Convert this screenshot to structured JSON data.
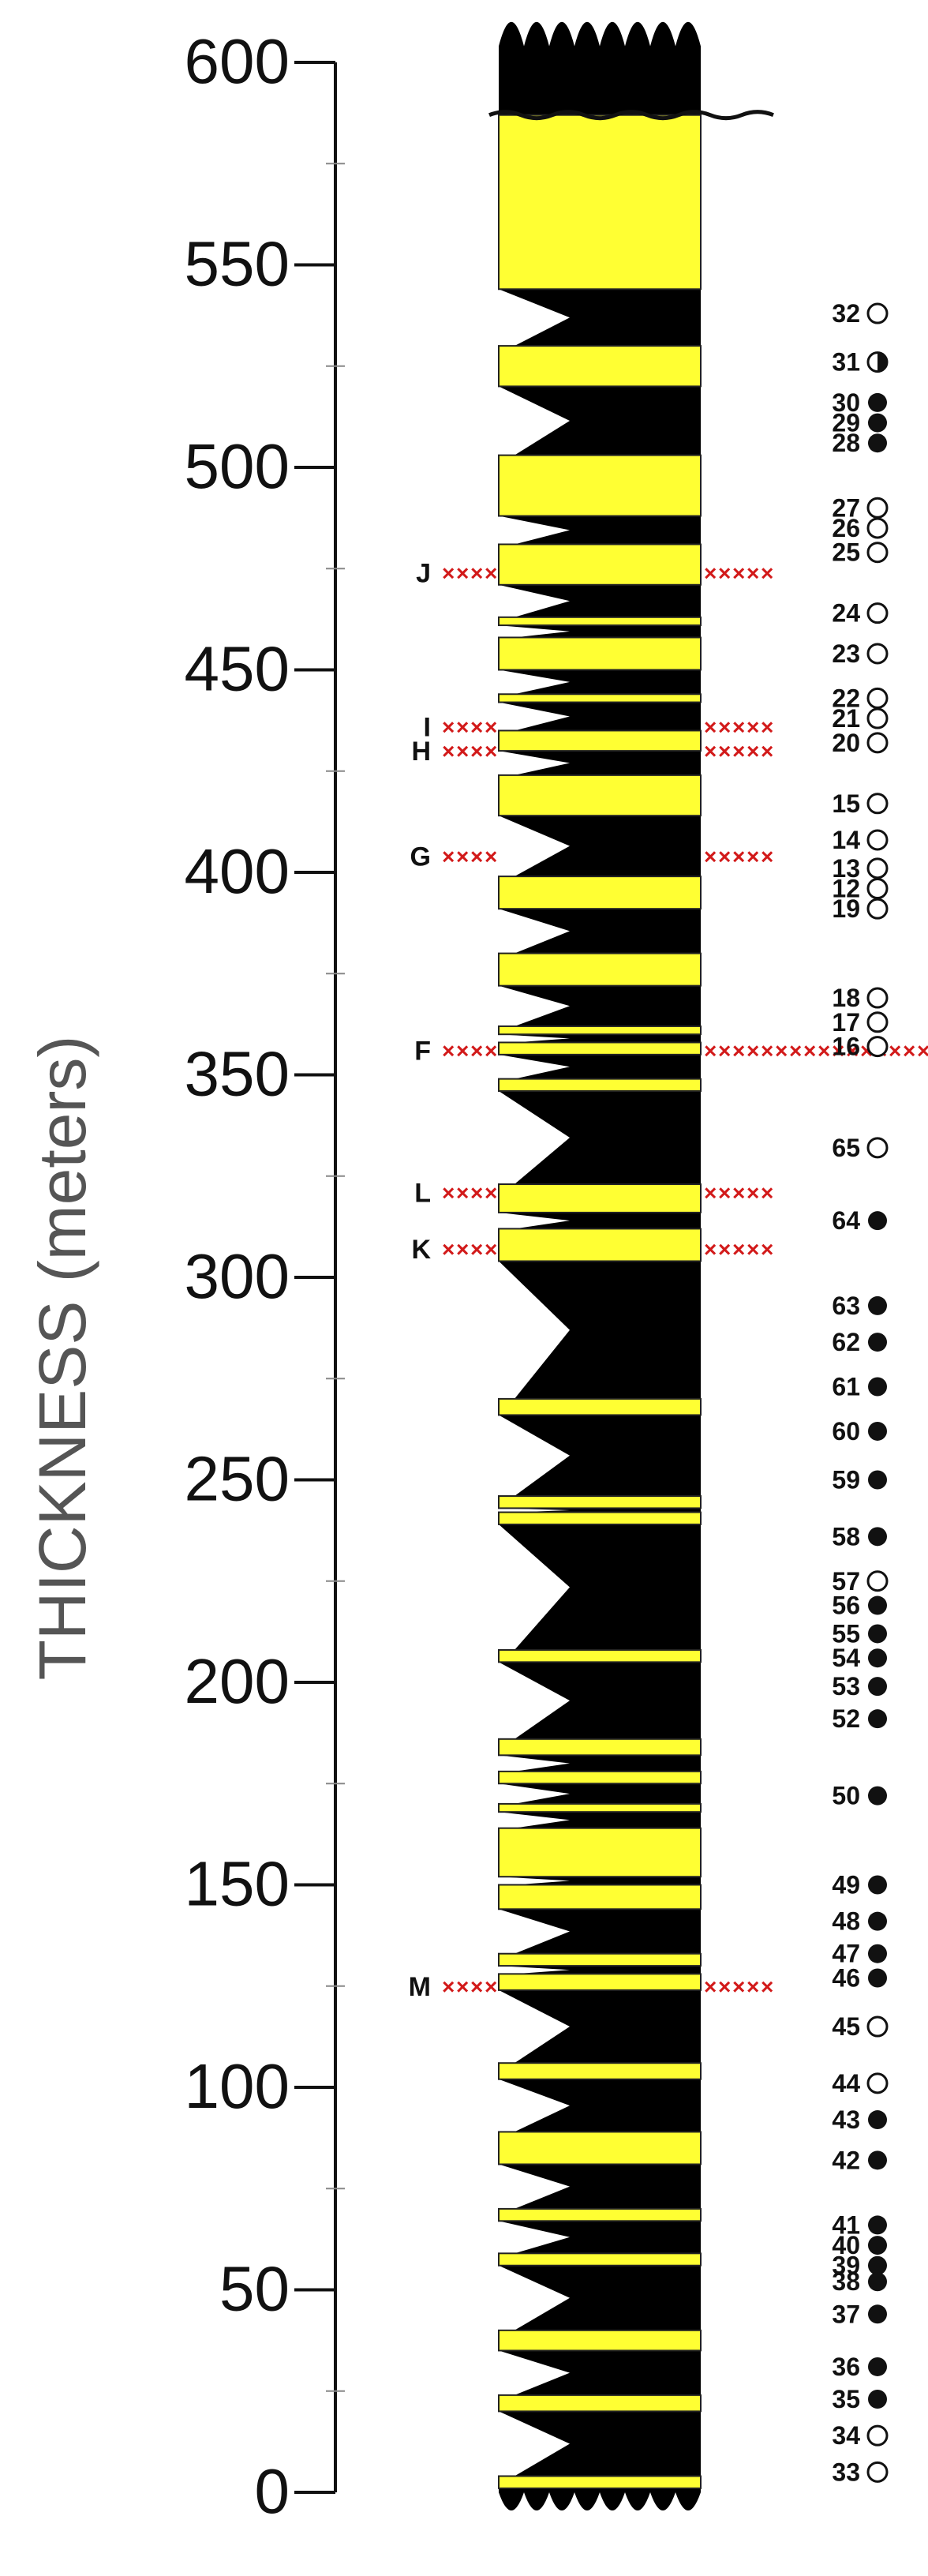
{
  "axis": {
    "title": "THICKNESS (meters)",
    "min": 0,
    "max": 600,
    "tick_labels": [
      "0",
      "50",
      "100",
      "150",
      "200",
      "250",
      "300",
      "350",
      "400",
      "450",
      "500",
      "550",
      "600"
    ]
  },
  "column": {
    "fill_color": "#000000",
    "sand_color": "#ffff33",
    "yellow_beds": [
      [
        1,
        4
      ],
      [
        20,
        24
      ],
      [
        35,
        40
      ],
      [
        56,
        59
      ],
      [
        67,
        70
      ],
      [
        81,
        89
      ],
      [
        102,
        106
      ],
      [
        124,
        128
      ],
      [
        130,
        133
      ],
      [
        144,
        150
      ],
      [
        152,
        164
      ],
      [
        168,
        170
      ],
      [
        175,
        178
      ],
      [
        182,
        186
      ],
      [
        205,
        208
      ],
      [
        239,
        242
      ],
      [
        243,
        246
      ],
      [
        266,
        270
      ],
      [
        304,
        312
      ],
      [
        316,
        323
      ],
      [
        346,
        349
      ],
      [
        355,
        358
      ],
      [
        360,
        362
      ],
      [
        372,
        380
      ],
      [
        391,
        399
      ],
      [
        414,
        424
      ],
      [
        430,
        435
      ],
      [
        442,
        444
      ],
      [
        450,
        458
      ],
      [
        461,
        463
      ],
      [
        471,
        481
      ],
      [
        488,
        503
      ],
      [
        520,
        530
      ],
      [
        544,
        587
      ]
    ]
  },
  "marker_color": "#d21a1a",
  "horizons": [
    {
      "label": "J",
      "thickness": 474
    },
    {
      "label": "I",
      "thickness": 436
    },
    {
      "label": "H",
      "thickness": 430
    },
    {
      "label": "G",
      "thickness": 404
    },
    {
      "label": "F",
      "thickness": 356
    },
    {
      "label": "L",
      "thickness": 321
    },
    {
      "label": "K",
      "thickness": 307
    },
    {
      "label": "M",
      "thickness": 125
    }
  ],
  "samples": [
    {
      "id": "32",
      "thickness": 538,
      "symbol": "open"
    },
    {
      "id": "31",
      "thickness": 526,
      "symbol": "half"
    },
    {
      "id": "30",
      "thickness": 516,
      "symbol": "filled"
    },
    {
      "id": "29",
      "thickness": 511,
      "symbol": "filled"
    },
    {
      "id": "28",
      "thickness": 506,
      "symbol": "filled"
    },
    {
      "id": "27",
      "thickness": 490,
      "symbol": "open"
    },
    {
      "id": "26",
      "thickness": 485,
      "symbol": "open"
    },
    {
      "id": "25",
      "thickness": 479,
      "symbol": "open"
    },
    {
      "id": "24",
      "thickness": 464,
      "symbol": "open"
    },
    {
      "id": "23",
      "thickness": 454,
      "symbol": "open"
    },
    {
      "id": "22",
      "thickness": 443,
      "symbol": "open"
    },
    {
      "id": "21",
      "thickness": 438,
      "symbol": "open"
    },
    {
      "id": "20",
      "thickness": 432,
      "symbol": "open"
    },
    {
      "id": "15",
      "thickness": 417,
      "symbol": "open"
    },
    {
      "id": "14",
      "thickness": 408,
      "symbol": "open"
    },
    {
      "id": "13",
      "thickness": 401,
      "symbol": "open"
    },
    {
      "id": "12",
      "thickness": 396,
      "symbol": "open"
    },
    {
      "id": "19",
      "thickness": 391,
      "symbol": "open"
    },
    {
      "id": "18",
      "thickness": 369,
      "symbol": "open"
    },
    {
      "id": "17",
      "thickness": 363,
      "symbol": "open"
    },
    {
      "id": "16",
      "thickness": 357,
      "symbol": "open"
    },
    {
      "id": "65",
      "thickness": 332,
      "symbol": "open"
    },
    {
      "id": "64",
      "thickness": 314,
      "symbol": "filled"
    },
    {
      "id": "63",
      "thickness": 293,
      "symbol": "filled"
    },
    {
      "id": "62",
      "thickness": 284,
      "symbol": "filled"
    },
    {
      "id": "61",
      "thickness": 273,
      "symbol": "filled"
    },
    {
      "id": "60",
      "thickness": 262,
      "symbol": "filled"
    },
    {
      "id": "59",
      "thickness": 250,
      "symbol": "filled"
    },
    {
      "id": "58",
      "thickness": 236,
      "symbol": "filled"
    },
    {
      "id": "57",
      "thickness": 225,
      "symbol": "open"
    },
    {
      "id": "56",
      "thickness": 219,
      "symbol": "filled"
    },
    {
      "id": "55",
      "thickness": 212,
      "symbol": "filled"
    },
    {
      "id": "54",
      "thickness": 206,
      "symbol": "filled"
    },
    {
      "id": "53",
      "thickness": 199,
      "symbol": "filled"
    },
    {
      "id": "52",
      "thickness": 191,
      "symbol": "filled"
    },
    {
      "id": "50",
      "thickness": 172,
      "symbol": "filled"
    },
    {
      "id": "49",
      "thickness": 150,
      "symbol": "filled"
    },
    {
      "id": "48",
      "thickness": 141,
      "symbol": "filled"
    },
    {
      "id": "47",
      "thickness": 133,
      "symbol": "filled"
    },
    {
      "id": "46",
      "thickness": 127,
      "symbol": "filled"
    },
    {
      "id": "45",
      "thickness": 115,
      "symbol": "open"
    },
    {
      "id": "44",
      "thickness": 101,
      "symbol": "open"
    },
    {
      "id": "43",
      "thickness": 92,
      "symbol": "filled"
    },
    {
      "id": "42",
      "thickness": 82,
      "symbol": "filled"
    },
    {
      "id": "41",
      "thickness": 66,
      "symbol": "filled"
    },
    {
      "id": "40",
      "thickness": 61,
      "symbol": "filled"
    },
    {
      "id": "39",
      "thickness": 56,
      "symbol": "filled"
    },
    {
      "id": "38",
      "thickness": 52,
      "symbol": "filled"
    },
    {
      "id": "37",
      "thickness": 44,
      "symbol": "filled"
    },
    {
      "id": "36",
      "thickness": 31,
      "symbol": "filled"
    },
    {
      "id": "35",
      "thickness": 23,
      "symbol": "filled"
    },
    {
      "id": "34",
      "thickness": 14,
      "symbol": "open"
    },
    {
      "id": "33",
      "thickness": 5,
      "symbol": "open"
    }
  ]
}
